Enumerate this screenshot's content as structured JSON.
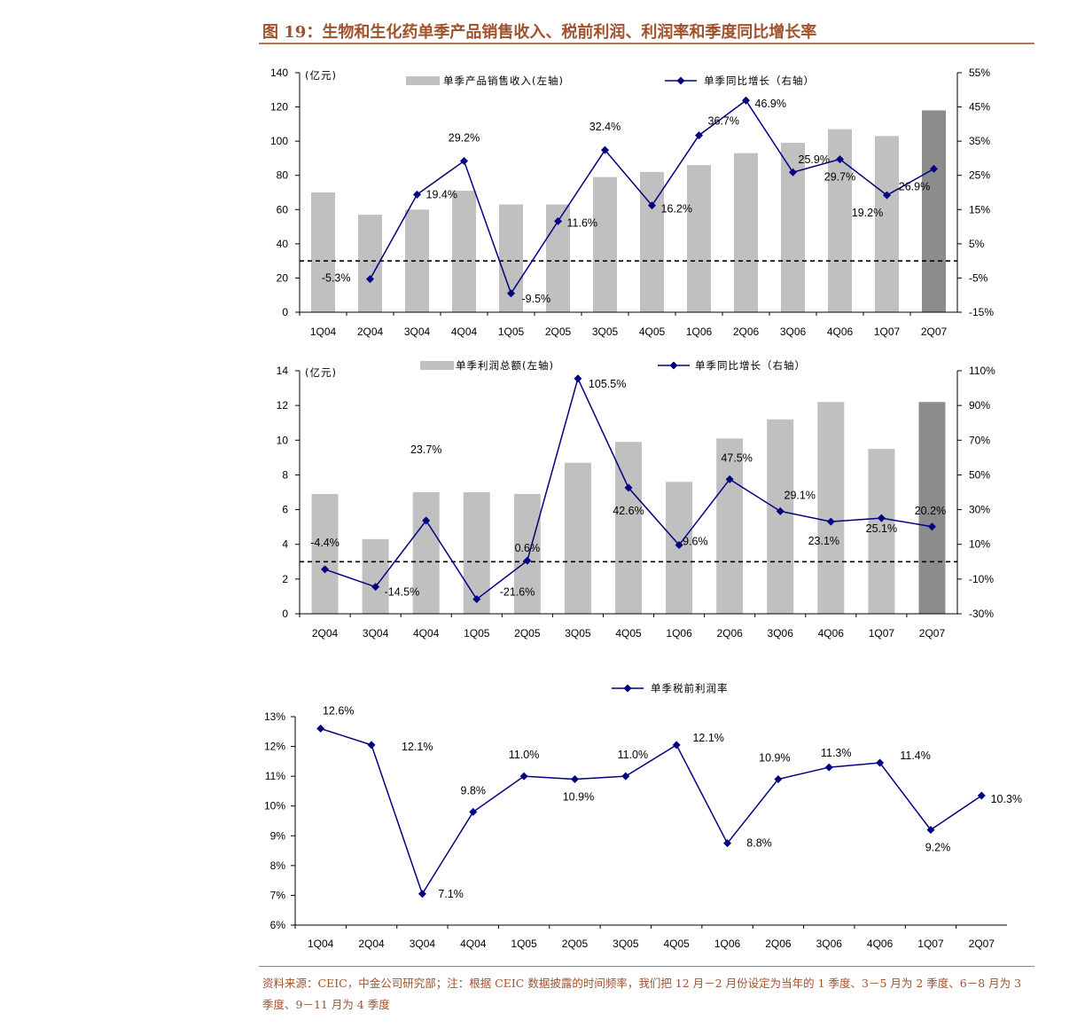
{
  "title": "图 19：生物和生化药单季产品销售收入、税前利润、利润率和季度同比增长率",
  "footnote": "资料来源：CEIC，中金公司研究部；注：根据 CEIC 数据披露的时间频率，我们把 12 月－2 月份设定为当年的 1 季度、3－5 月为 2 季度、6－8 月为 3 季度、9－11 月为 4 季度",
  "colors": {
    "bar": "#c0c0c0",
    "bar_last": "#8c8c8c",
    "line": "#000080",
    "brand": "#a0522d"
  },
  "chart_data": [
    {
      "type": "bar+line",
      "unit_label": "(亿元)",
      "categories": [
        "1Q04",
        "2Q04",
        "3Q04",
        "4Q04",
        "1Q05",
        "2Q05",
        "3Q05",
        "4Q05",
        "1Q06",
        "2Q06",
        "3Q06",
        "4Q06",
        "1Q07",
        "2Q07"
      ],
      "left_axis": {
        "min": 0,
        "max": 140,
        "ticks": [
          "0",
          "20",
          "40",
          "60",
          "80",
          "100",
          "120",
          "140"
        ]
      },
      "right_axis": {
        "min": -15,
        "max": 55,
        "ticks": [
          "-15%",
          "-5%",
          "5%",
          "15%",
          "25%",
          "35%",
          "45%",
          "55%"
        ]
      },
      "zero_line_right": 0,
      "bar_series": {
        "name": "单季产品销售收入(左轴)",
        "values": [
          70,
          57,
          60,
          71,
          63,
          63,
          79,
          82,
          86,
          93,
          99,
          107,
          103,
          118
        ]
      },
      "line_series": {
        "name": "单季同比增长（右轴）",
        "values": [
          null,
          -5.3,
          19.4,
          29.2,
          -9.5,
          11.6,
          32.4,
          16.2,
          36.7,
          46.9,
          25.9,
          29.7,
          19.2,
          26.9
        ],
        "labels": [
          "",
          "-5.3%",
          "19.4%",
          "29.2%",
          "-9.5%",
          "11.6%",
          "32.4%",
          "16.2%",
          "36.7%",
          "46.9%",
          "25.9%",
          "29.7%",
          "19.2%",
          "26.9%"
        ]
      }
    },
    {
      "type": "bar+line",
      "unit_label": "(亿元)",
      "categories": [
        "2Q04",
        "3Q04",
        "4Q04",
        "1Q05",
        "2Q05",
        "3Q05",
        "4Q05",
        "1Q06",
        "2Q06",
        "3Q06",
        "4Q06",
        "1Q07",
        "2Q07"
      ],
      "left_axis": {
        "min": 0,
        "max": 14,
        "ticks": [
          "0",
          "2",
          "4",
          "6",
          "8",
          "10",
          "12",
          "14"
        ]
      },
      "right_axis": {
        "min": -30,
        "max": 110,
        "ticks": [
          "-30%",
          "-10%",
          "10%",
          "30%",
          "50%",
          "70%",
          "90%",
          "110%"
        ]
      },
      "zero_line_right": 0,
      "bar_series": {
        "name": "单季利润总额(左轴)",
        "values": [
          6.9,
          4.3,
          7.0,
          7.0,
          6.9,
          8.7,
          9.9,
          7.6,
          10.1,
          11.2,
          12.2,
          9.5,
          12.2
        ]
      },
      "line_series": {
        "name": "单季同比增长（右轴）",
        "values": [
          -4.4,
          -14.5,
          23.7,
          -21.6,
          0.6,
          105.5,
          42.6,
          9.6,
          47.5,
          29.1,
          23.1,
          25.1,
          20.2
        ],
        "labels": [
          "-4.4%",
          "-14.5%",
          "23.7%",
          "-21.6%",
          "0.6%",
          "105.5%",
          "42.6%",
          "9.6%",
          "47.5%",
          "29.1%",
          "23.1%",
          "25.1%",
          "20.2%"
        ]
      }
    },
    {
      "type": "line",
      "categories": [
        "1Q04",
        "2Q04",
        "3Q04",
        "4Q04",
        "1Q05",
        "2Q05",
        "3Q05",
        "4Q05",
        "1Q06",
        "2Q06",
        "3Q06",
        "4Q06",
        "1Q07",
        "2Q07"
      ],
      "y_axis": {
        "min": 6,
        "max": 13,
        "ticks": [
          "6%",
          "7%",
          "8%",
          "9%",
          "10%",
          "11%",
          "12%",
          "13%"
        ]
      },
      "line_series": {
        "name": "单季税前利润率",
        "values": [
          12.6,
          12.05,
          7.05,
          9.8,
          11.0,
          10.9,
          11.0,
          12.05,
          8.75,
          10.9,
          11.3,
          11.45,
          9.2,
          10.35
        ],
        "labels": [
          "12.6%",
          "12.1%",
          "7.1%",
          "9.8%",
          "11.0%",
          "10.9%",
          "11.0%",
          "12.1%",
          "8.8%",
          "10.9%",
          "11.3%",
          "11.4%",
          "9.2%",
          "10.3%"
        ]
      }
    }
  ]
}
